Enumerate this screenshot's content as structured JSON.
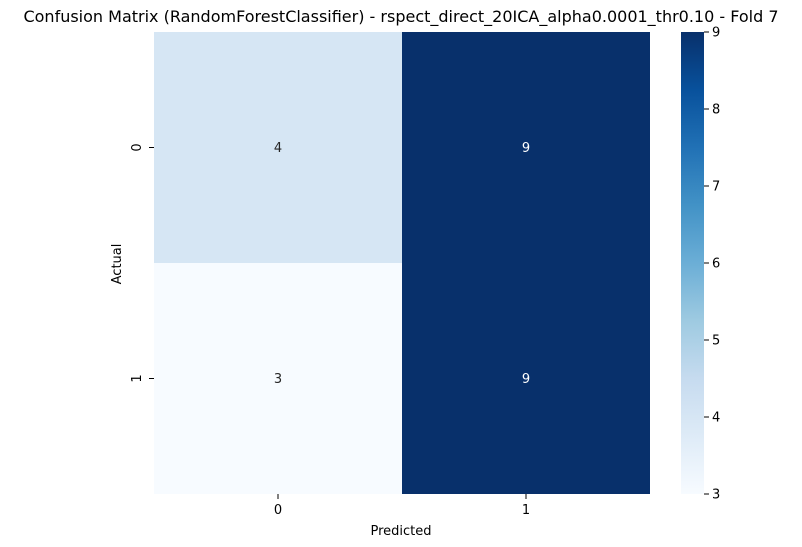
{
  "chart_data": {
    "type": "heatmap",
    "title": "Confusion Matrix (RandomForestClassifier) - rspect_direct_20ICA_alpha0.0001_thr0.10 - Fold 7",
    "xlabel": "Predicted",
    "ylabel": "Actual",
    "x_categories": [
      "0",
      "1"
    ],
    "y_categories": [
      "0",
      "1"
    ],
    "values": [
      [
        4,
        9
      ],
      [
        3,
        9
      ]
    ],
    "colorbar": {
      "min": 3,
      "max": 9,
      "ticks": [
        3,
        4,
        5,
        6,
        7,
        8,
        9
      ]
    },
    "colormap": "Blues",
    "colors": {
      "low": "#f7fbff",
      "high": "#08306b",
      "text_light_bg": "#262626",
      "text_dark_bg": "#ffffff"
    }
  }
}
